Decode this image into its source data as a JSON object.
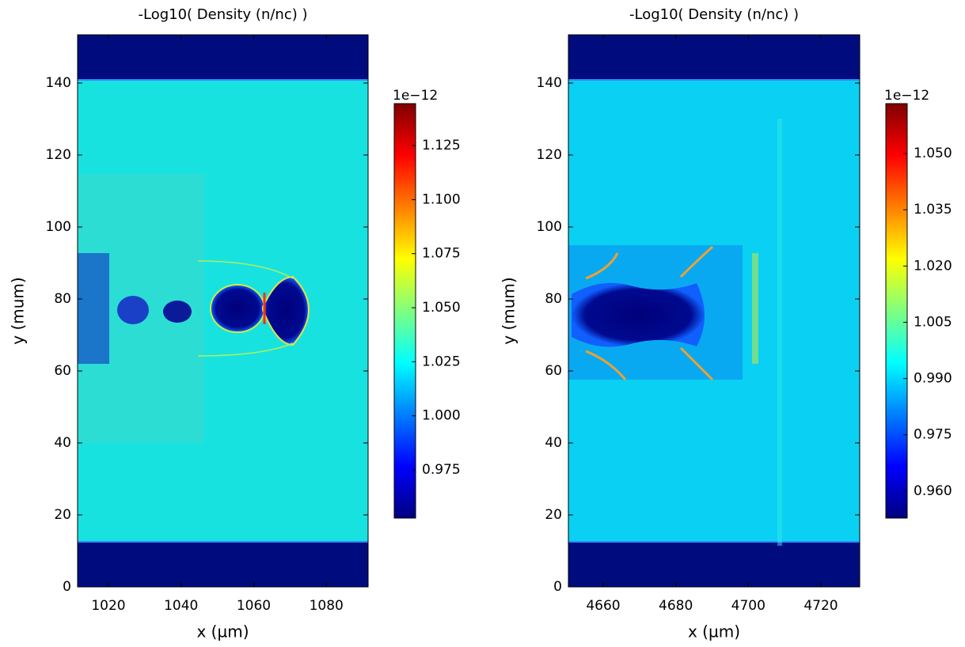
{
  "chart_data": [
    {
      "type": "heatmap",
      "title": "-Log10( Density (n/nc) )",
      "x_label": "x (µm)",
      "y_label": "y (mum)",
      "xlim": [
        1011.5,
        1091.5
      ],
      "ylim": [
        0,
        153.4
      ],
      "xticks": [
        1020,
        1040,
        1060,
        1080
      ],
      "yticks": [
        0,
        20,
        40,
        60,
        80,
        100,
        120,
        140
      ],
      "colormap": "jet",
      "colorbar": {
        "offset_label": "1e−12",
        "lim": [
          0.9527,
          1.1444
        ],
        "ticks": [
          0.975,
          {
            "value": 1,
            "label": "1.000"
          },
          1.025,
          {
            "value": 1.05,
            "label": "1.050"
          },
          1.075,
          {
            "value": 1.1,
            "label": "1.100"
          },
          1.125
        ]
      }
    },
    {
      "type": "heatmap",
      "title": "-Log10( Density (n/nc) )",
      "x_label": "x (µm)",
      "y_label": "y (mum)",
      "xlim": [
        4650.4,
        4730.7
      ],
      "ylim": [
        0,
        153.4
      ],
      "xticks": [
        4660,
        4680,
        4700,
        4720
      ],
      "yticks": [
        0,
        20,
        40,
        60,
        80,
        100,
        120,
        140
      ],
      "colormap": "jet",
      "colorbar": {
        "offset_label": "1e−12",
        "lim": [
          0.9528,
          1.0633
        ],
        "ticks": [
          {
            "value": 0.96,
            "label": "0.960"
          },
          0.975,
          {
            "value": 0.99,
            "label": "0.990"
          },
          1.005,
          {
            "value": 1.02,
            "label": "1.020"
          },
          1.035,
          {
            "value": 1.05,
            "label": "1.050"
          }
        ]
      }
    }
  ]
}
